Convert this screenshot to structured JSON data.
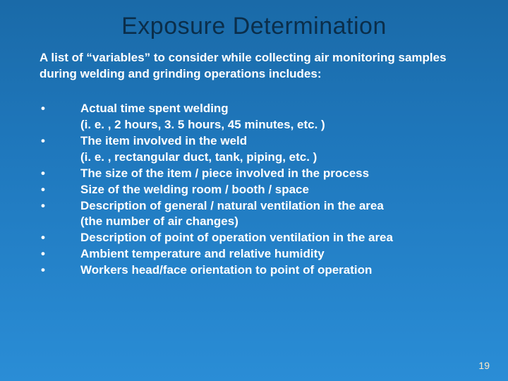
{
  "colors": {
    "bg_top": "#1a6aa8",
    "bg_mid": "#1f78bd",
    "bg_bottom": "#2a8dd6",
    "title_color": "#0b2e4a",
    "body_text": "#ffffff",
    "slidenum_color": "#ffe9c6"
  },
  "typography": {
    "family": "Arial",
    "title_size_pt": 26,
    "body_size_pt": 13,
    "body_weight": "bold",
    "title_weight": "normal"
  },
  "title": "Exposure Determination",
  "intro": "A list of “variables” to consider while collecting air monitoring samples during welding and grinding operations includes:",
  "bullets": [
    "Actual time spent welding\n(i. e. , 2 hours, 3. 5 hours, 45 minutes, etc. )",
    "The item involved in the weld\n(i. e. , rectangular duct, tank, piping, etc. )",
    "The size of the item / piece involved in the process",
    "Size of the welding room / booth / space",
    "Description of general / natural ventilation in the area\n(the number of air changes)",
    "Description of point of operation ventilation in the area",
    "Ambient temperature and relative humidity",
    "Workers head/face orientation to point of operation"
  ],
  "slide_number": "19"
}
